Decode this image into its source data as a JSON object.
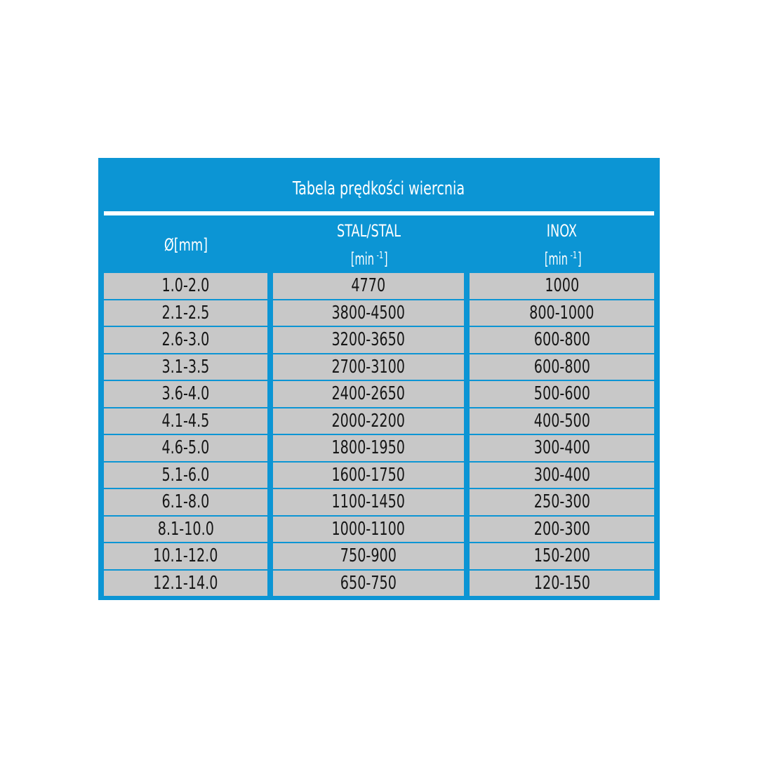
{
  "title": "Tabela prędkości wiercnia",
  "columns": [
    {
      "label": "Ø[mm]",
      "unit": ""
    },
    {
      "label": "STAL/STAL",
      "unit": "[min",
      "unit_sup": "-1",
      "unit_close": "]"
    },
    {
      "label": "INOX",
      "unit": "[min",
      "unit_sup": "-1",
      "unit_close": "]"
    }
  ],
  "rows": [
    [
      "1.0-2.0",
      "4770",
      "1000"
    ],
    [
      "2.1-2.5",
      "3800-4500",
      "800-1000"
    ],
    [
      "2.6-3.0",
      "3200-3650",
      "600-800"
    ],
    [
      "3.1-3.5",
      "2700-3100",
      "600-800"
    ],
    [
      "3.6-4.0",
      "2400-2650",
      "500-600"
    ],
    [
      "4.1-4.5",
      "2000-2200",
      "400-500"
    ],
    [
      "4.6-5.0",
      "1800-1950",
      "300-400"
    ],
    [
      "5.1-6.0",
      "1600-1750",
      "300-400"
    ],
    [
      "6.1-8.0",
      "1100-1450",
      "250-300"
    ],
    [
      "8.1-10.0",
      "1000-1100",
      "200-300"
    ],
    [
      "10.1-12.0",
      "750-900",
      "150-200"
    ],
    [
      "12.1-14.0",
      "650-750",
      "120-150"
    ]
  ],
  "colors": {
    "header_blue": "#0c95d4",
    "cell_gray": "#c8c8c8"
  }
}
